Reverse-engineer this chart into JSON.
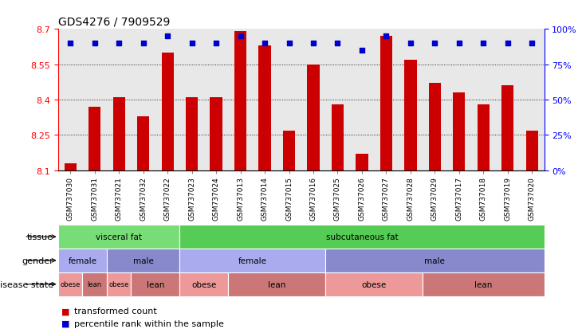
{
  "title": "GDS4276 / 7909529",
  "samples": [
    "GSM737030",
    "GSM737031",
    "GSM737021",
    "GSM737032",
    "GSM737022",
    "GSM737023",
    "GSM737024",
    "GSM737013",
    "GSM737014",
    "GSM737015",
    "GSM737016",
    "GSM737025",
    "GSM737026",
    "GSM737027",
    "GSM737028",
    "GSM737029",
    "GSM737017",
    "GSM737018",
    "GSM737019",
    "GSM737020"
  ],
  "bar_values": [
    8.13,
    8.37,
    8.41,
    8.33,
    8.6,
    8.41,
    8.41,
    8.69,
    8.63,
    8.27,
    8.55,
    8.38,
    8.17,
    8.67,
    8.57,
    8.47,
    8.43,
    8.38,
    8.46,
    8.27
  ],
  "dot_values": [
    90,
    90,
    90,
    90,
    95,
    90,
    90,
    95,
    90,
    90,
    90,
    90,
    85,
    95,
    90,
    90,
    90,
    90,
    90,
    90
  ],
  "ymin": 8.1,
  "ymax": 8.7,
  "yticks": [
    8.1,
    8.25,
    8.4,
    8.55,
    8.7
  ],
  "right_yticks": [
    0,
    25,
    50,
    75,
    100
  ],
  "right_yticklabels": [
    "0%",
    "25%",
    "50%",
    "75%",
    "100%"
  ],
  "bar_color": "#cc0000",
  "dot_color": "#0000cc",
  "bg_color": "#e8e8e8",
  "tissue_row": {
    "label": "tissue",
    "segments": [
      {
        "text": "visceral fat",
        "start": 0,
        "end": 5,
        "color": "#77dd77"
      },
      {
        "text": "subcutaneous fat",
        "start": 5,
        "end": 20,
        "color": "#55cc55"
      }
    ]
  },
  "gender_row": {
    "label": "gender",
    "segments": [
      {
        "text": "female",
        "start": 0,
        "end": 2,
        "color": "#aaaaee"
      },
      {
        "text": "male",
        "start": 2,
        "end": 5,
        "color": "#8888cc"
      },
      {
        "text": "female",
        "start": 5,
        "end": 11,
        "color": "#aaaaee"
      },
      {
        "text": "male",
        "start": 11,
        "end": 20,
        "color": "#8888cc"
      }
    ]
  },
  "disease_row": {
    "label": "disease state",
    "segments": [
      {
        "text": "obese",
        "start": 0,
        "end": 1,
        "color": "#ee9999"
      },
      {
        "text": "lean",
        "start": 1,
        "end": 2,
        "color": "#cc7777"
      },
      {
        "text": "obese",
        "start": 2,
        "end": 3,
        "color": "#ee9999"
      },
      {
        "text": "lean",
        "start": 3,
        "end": 5,
        "color": "#cc7777"
      },
      {
        "text": "obese",
        "start": 5,
        "end": 7,
        "color": "#ee9999"
      },
      {
        "text": "lean",
        "start": 7,
        "end": 11,
        "color": "#cc7777"
      },
      {
        "text": "obese",
        "start": 11,
        "end": 15,
        "color": "#ee9999"
      },
      {
        "text": "lean",
        "start": 15,
        "end": 20,
        "color": "#cc7777"
      }
    ]
  },
  "legend_items": [
    {
      "color": "#cc0000",
      "label": "transformed count"
    },
    {
      "color": "#0000cc",
      "label": "percentile rank within the sample"
    }
  ]
}
